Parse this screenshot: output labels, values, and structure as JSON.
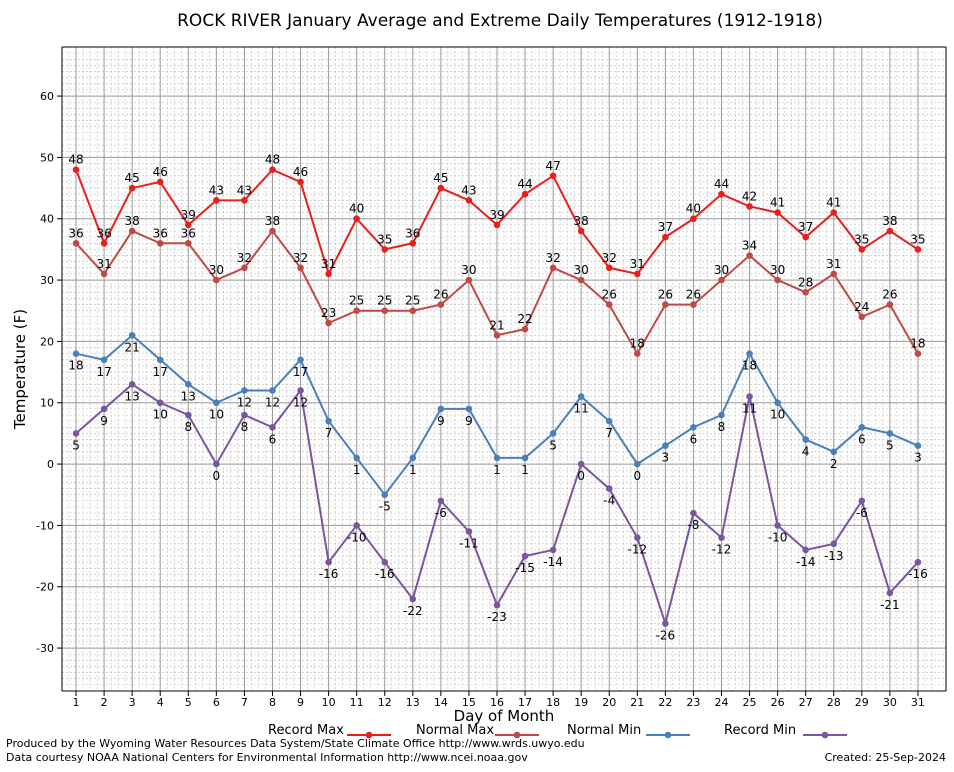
{
  "chart_data": {
    "type": "line",
    "title": "ROCK RIVER January Average and Extreme Daily Temperatures (1912-1918)",
    "xlabel": "Day of Month",
    "ylabel": "Temperature (F)",
    "x": [
      1,
      2,
      3,
      4,
      5,
      6,
      7,
      8,
      9,
      10,
      11,
      12,
      13,
      14,
      15,
      16,
      17,
      18,
      19,
      20,
      21,
      22,
      23,
      24,
      25,
      26,
      27,
      28,
      29,
      30,
      31
    ],
    "ylim": [
      -37,
      68
    ],
    "yticks": [
      -30,
      -20,
      -10,
      0,
      10,
      20,
      30,
      40,
      50,
      60
    ],
    "grid": true,
    "legend_position": "bottom",
    "series": [
      {
        "name": "Record Max",
        "color": "#e8201c",
        "label_pos": "above",
        "values": [
          48,
          36,
          45,
          46,
          39,
          43,
          43,
          48,
          46,
          31,
          40,
          35,
          36,
          45,
          43,
          39,
          44,
          47,
          38,
          32,
          31,
          37,
          40,
          44,
          42,
          41,
          37,
          41,
          35,
          38,
          35
        ]
      },
      {
        "name": "Normal Max",
        "color": "#bf4a45",
        "label_pos": "above",
        "values": [
          36,
          31,
          38,
          36,
          36,
          30,
          32,
          38,
          32,
          23,
          25,
          25,
          25,
          26,
          30,
          21,
          22,
          32,
          30,
          26,
          18,
          26,
          26,
          30,
          34,
          30,
          28,
          31,
          24,
          26,
          18
        ]
      },
      {
        "name": "Normal Min",
        "color": "#4a7fb8",
        "label_pos": "below",
        "values": [
          18,
          17,
          21,
          17,
          13,
          10,
          12,
          12,
          17,
          7,
          1,
          -5,
          1,
          9,
          9,
          1,
          1,
          5,
          11,
          7,
          0,
          3,
          6,
          8,
          18,
          10,
          4,
          2,
          6,
          5,
          3
        ]
      },
      {
        "name": "Record Min",
        "color": "#7b559e",
        "label_pos": "below",
        "values": [
          5,
          9,
          13,
          10,
          8,
          0,
          8,
          6,
          12,
          -16,
          -10,
          -16,
          -22,
          -6,
          -11,
          -23,
          -15,
          -14,
          0,
          -4,
          -12,
          -26,
          -8,
          -12,
          11,
          -10,
          -14,
          -13,
          -6,
          -21,
          -16
        ]
      }
    ]
  },
  "footer": {
    "line1": "Produced by the Wyoming Water Resources Data System/State Climate Office http://www.wrds.uwyo.edu",
    "line2": "Data courtesy NOAA National Centers for Environmental Information http://www.ncei.noaa.gov",
    "created": "Created:  25-Sep-2024"
  }
}
